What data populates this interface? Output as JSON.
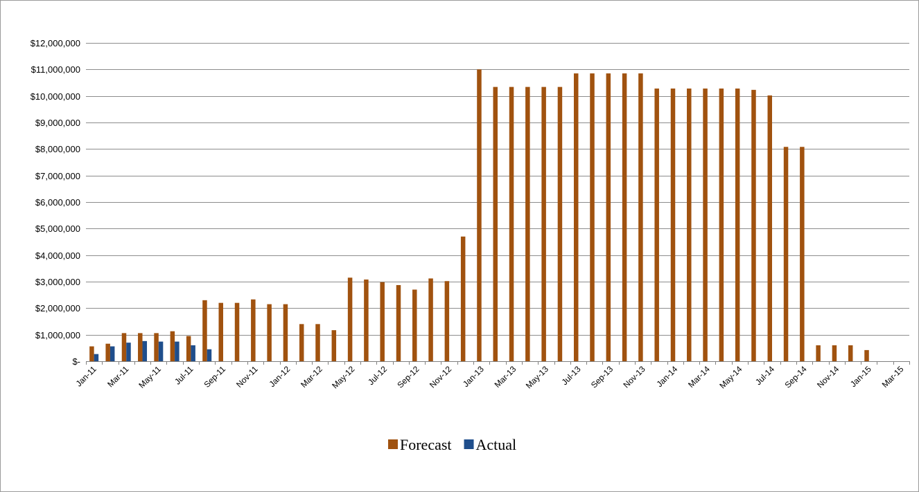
{
  "chart_data": {
    "type": "bar",
    "title": "",
    "xlabel": "",
    "ylabel": "",
    "ylim": [
      0,
      12000000
    ],
    "y_ticks": [
      {
        "value": 0,
        "label": "$-"
      },
      {
        "value": 1000000,
        "label": "$1,000,000"
      },
      {
        "value": 2000000,
        "label": "$2,000,000"
      },
      {
        "value": 3000000,
        "label": "$3,000,000"
      },
      {
        "value": 4000000,
        "label": "$4,000,000"
      },
      {
        "value": 5000000,
        "label": "$5,000,000"
      },
      {
        "value": 6000000,
        "label": "$6,000,000"
      },
      {
        "value": 7000000,
        "label": "$7,000,000"
      },
      {
        "value": 8000000,
        "label": "$8,000,000"
      },
      {
        "value": 9000000,
        "label": "$9,000,000"
      },
      {
        "value": 10000000,
        "label": "$10,000,000"
      },
      {
        "value": 11000000,
        "label": "$11,000,000"
      },
      {
        "value": 12000000,
        "label": "$12,000,000"
      }
    ],
    "categories": [
      "Jan-11",
      "Feb-11",
      "Mar-11",
      "Apr-11",
      "May-11",
      "Jun-11",
      "Jul-11",
      "Aug-11",
      "Sep-11",
      "Oct-11",
      "Nov-11",
      "Dec-11",
      "Jan-12",
      "Feb-12",
      "Mar-12",
      "Apr-12",
      "May-12",
      "Jun-12",
      "Jul-12",
      "Aug-12",
      "Sep-12",
      "Oct-12",
      "Nov-12",
      "Dec-12",
      "Jan-13",
      "Feb-13",
      "Mar-13",
      "Apr-13",
      "May-13",
      "Jun-13",
      "Jul-13",
      "Aug-13",
      "Sep-13",
      "Oct-13",
      "Nov-13",
      "Dec-13",
      "Jan-14",
      "Feb-14",
      "Mar-14",
      "Apr-14",
      "May-14",
      "Jun-14",
      "Jul-14",
      "Aug-14",
      "Sep-14",
      "Oct-14",
      "Nov-14",
      "Dec-14",
      "Jan-15",
      "Feb-15",
      "Mar-15"
    ],
    "tick_labels": [
      "Jan-11",
      "Mar-11",
      "May-11",
      "Jul-11",
      "Sep-11",
      "Nov-11",
      "Jan-12",
      "Mar-12",
      "May-12",
      "Jul-12",
      "Sep-12",
      "Nov-12",
      "Jan-13",
      "Mar-13",
      "May-13",
      "Jul-13",
      "Sep-13",
      "Nov-13",
      "Jan-14",
      "Mar-14",
      "May-14",
      "Jul-14",
      "Sep-14",
      "Nov-14",
      "Jan-15",
      "Mar-15"
    ],
    "series": [
      {
        "name": "Forecast",
        "color": "#a0520f",
        "values": [
          560000,
          660000,
          1060000,
          1060000,
          1060000,
          1130000,
          950000,
          2300000,
          2200000,
          2200000,
          2330000,
          2150000,
          2150000,
          1400000,
          1400000,
          1170000,
          3150000,
          3080000,
          2980000,
          2870000,
          2700000,
          3120000,
          3020000,
          4700000,
          11000000,
          10340000,
          10340000,
          10340000,
          10340000,
          10340000,
          10850000,
          10850000,
          10850000,
          10850000,
          10850000,
          10280000,
          10280000,
          10280000,
          10280000,
          10280000,
          10280000,
          10230000,
          10020000,
          8080000,
          8080000,
          600000,
          600000,
          600000,
          420000,
          null,
          null
        ]
      },
      {
        "name": "Actual",
        "color": "#1f4e8c",
        "values": [
          270000,
          560000,
          700000,
          760000,
          740000,
          740000,
          600000,
          450000,
          null,
          null,
          null,
          null,
          null,
          null,
          null,
          null,
          null,
          null,
          null,
          null,
          null,
          null,
          null,
          null,
          null,
          null,
          null,
          null,
          null,
          null,
          null,
          null,
          null,
          null,
          null,
          null,
          null,
          null,
          null,
          null,
          null,
          null,
          null,
          null,
          null,
          null,
          null,
          null,
          null,
          null,
          null
        ]
      }
    ],
    "grid": true,
    "legend_position": "bottom-center"
  }
}
